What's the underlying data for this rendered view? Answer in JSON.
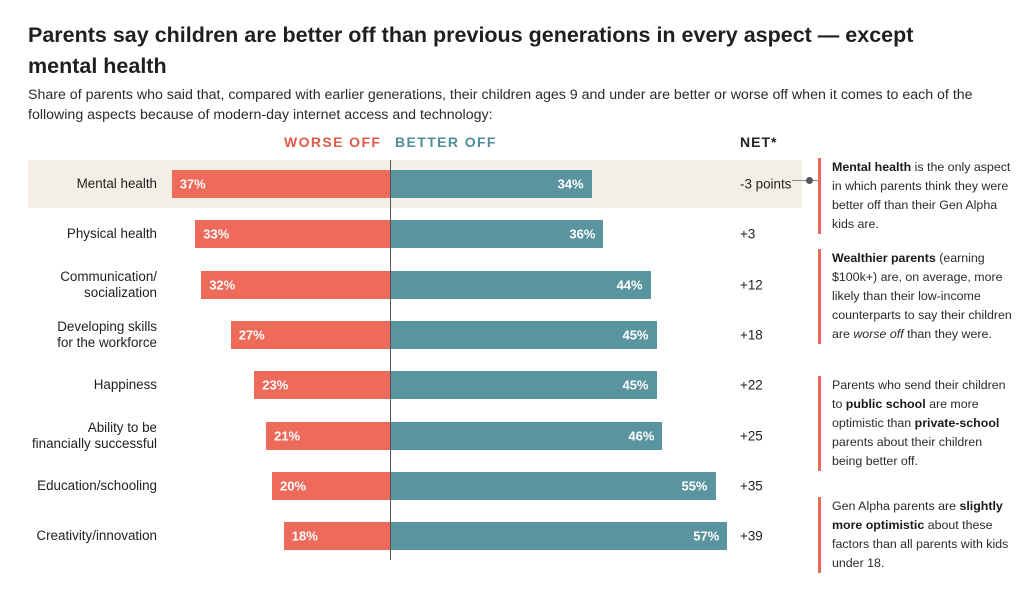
{
  "title": "Parents say children are better off than previous generations in every aspect — except mental health",
  "subtitle": "Share of parents who said that, compared with earlier generations, their children ages 9 and under are better or worse off when it comes to each of the following aspects because of modern-day internet access and technology:",
  "headers": {
    "worse": "WORSE OFF",
    "better": "BETTER OFF",
    "net": "NET*"
  },
  "colors": {
    "worse": "#ee6a5a",
    "better": "#5a949e",
    "highlight": "#f4efe6",
    "note_bar": "#e86a5b"
  },
  "chart_data": {
    "type": "bar",
    "orientation": "horizontal-diverging",
    "title": "Parents say children are better off than previous generations in every aspect — except mental health",
    "categories": [
      "Mental health",
      "Physical health",
      "Communication/\nsocialization",
      "Developing skills\nfor the workforce",
      "Happiness",
      "Ability to be\nfinancially successful",
      "Education/schooling",
      "Creativity/innovation"
    ],
    "series": [
      {
        "name": "WORSE OFF",
        "values": [
          37,
          33,
          32,
          27,
          23,
          21,
          20,
          18
        ]
      },
      {
        "name": "BETTER OFF",
        "values": [
          34,
          36,
          44,
          45,
          45,
          46,
          55,
          57
        ]
      }
    ],
    "value_labels_worse": [
      "37%",
      "33%",
      "32%",
      "27%",
      "23%",
      "21%",
      "20%",
      "18%"
    ],
    "value_labels_better": [
      "34%",
      "36%",
      "44%",
      "45%",
      "45%",
      "46%",
      "55%",
      "57%"
    ],
    "net": [
      "-3 points",
      "+3",
      "+12",
      "+18",
      "+22",
      "+25",
      "+35",
      "+39"
    ],
    "highlighted_category": "Mental health"
  },
  "notes": [
    {
      "parts": [
        {
          "text": "Mental health",
          "bold": true
        },
        {
          "text": " is the only aspect in which parents think they were better off than their Gen Alpha kids are."
        }
      ]
    },
    {
      "parts": [
        {
          "text": "Wealthier parents",
          "bold": true
        },
        {
          "text": " (earning $100k+) are, on average, more likely than their low-income counterparts to say their children are "
        },
        {
          "text": "worse off",
          "italic": true
        },
        {
          "text": " than they were."
        }
      ]
    },
    {
      "parts": [
        {
          "text": "Parents who send their children to "
        },
        {
          "text": "public school",
          "bold": true
        },
        {
          "text": " are more optimistic than "
        },
        {
          "text": "private-school",
          "bold": true
        },
        {
          "text": " parents about their children being better off."
        }
      ]
    },
    {
      "parts": [
        {
          "text": "Gen Alpha parents are "
        },
        {
          "text": "slightly more optimistic",
          "bold": true
        },
        {
          "text": " about these factors than all parents with kids under 18."
        }
      ]
    }
  ]
}
